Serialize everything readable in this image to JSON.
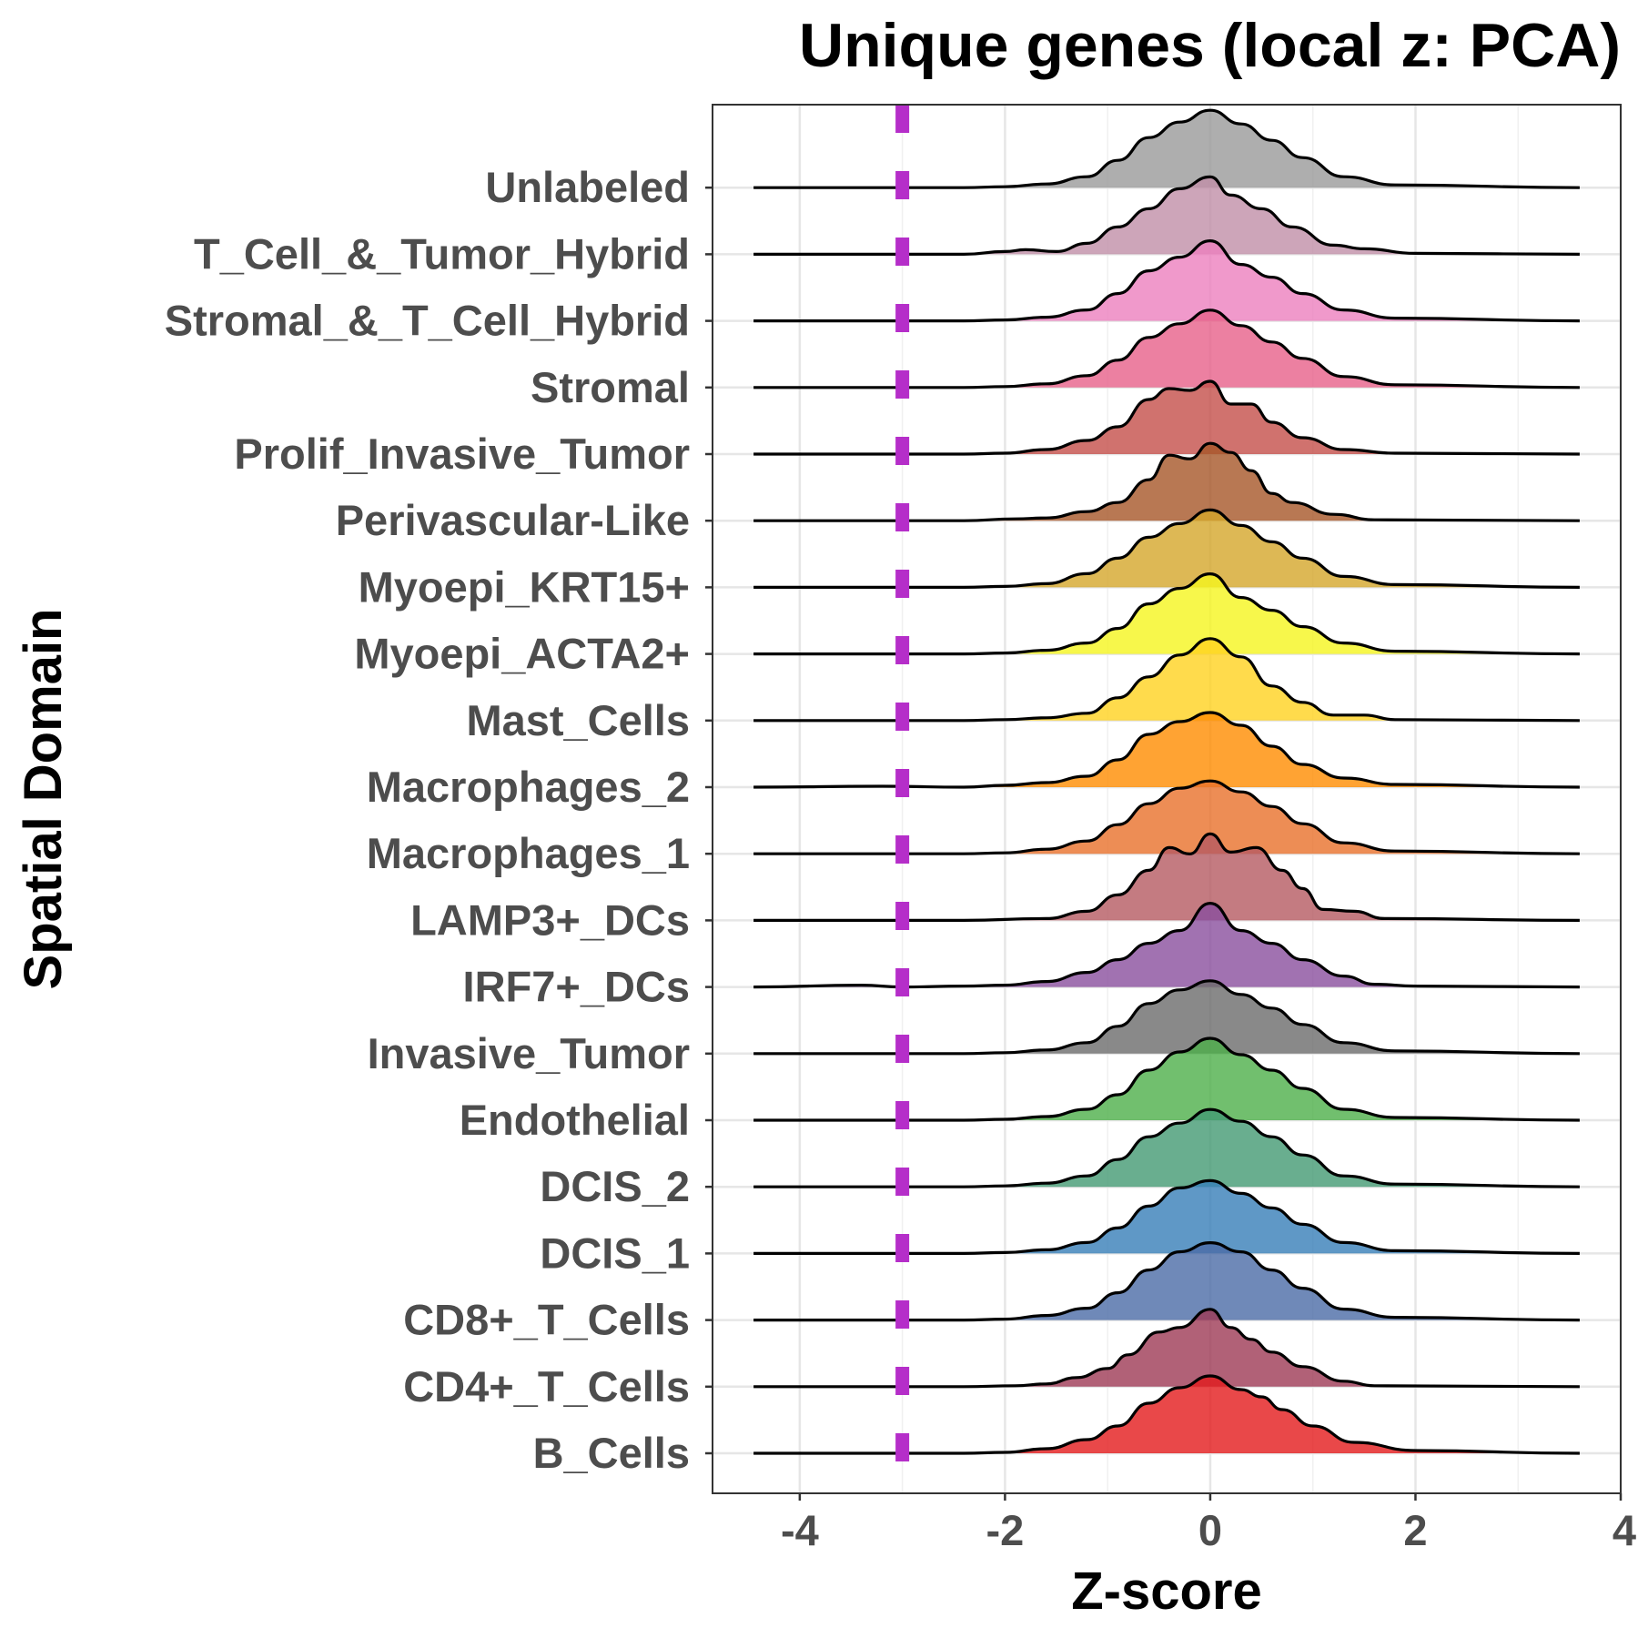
{
  "chart_data": {
    "type": "ridgeline",
    "title": "Unique genes (local z: PCA)",
    "xlabel": "Z-score",
    "ylabel": "Spatial Domain",
    "xlim": [
      -4.85,
      4.0
    ],
    "x_range": [
      -4.45,
      3.6
    ],
    "x_ticks": [
      -4,
      -2,
      0,
      2,
      4
    ],
    "x_tick_labels": [
      "-4",
      "-2",
      "0",
      "2",
      "4"
    ],
    "grid": true,
    "threshold": {
      "x": -3.0,
      "color": "#b52ec9",
      "style": "dashed"
    },
    "categories": [
      "B_Cells",
      "CD4+_T_Cells",
      "CD8+_T_Cells",
      "DCIS_1",
      "DCIS_2",
      "Endothelial",
      "Invasive_Tumor",
      "IRF7+_DCs",
      "LAMP3+_DCs",
      "Macrophages_1",
      "Macrophages_2",
      "Mast_Cells",
      "Myoepi_ACTA2+",
      "Myoepi_KRT15+",
      "Perivascular-Like",
      "Prolif_Invasive_Tumor",
      "Stromal",
      "Stromal_&_T_Cell_Hybrid",
      "T_Cell_&_Tumor_Hybrid",
      "Unlabeled"
    ],
    "series": [
      {
        "colour": "#e41a1c",
        "x": [
          -4.45,
          -2.4,
          -2,
          -1.6,
          -1.2,
          -0.9,
          -0.6,
          -0.3,
          0,
          0.3,
          0.5,
          0.7,
          1.0,
          1.4,
          2.0,
          3.6
        ],
        "density": [
          0,
          0,
          0.01,
          0.05,
          0.15,
          0.3,
          0.55,
          0.72,
          0.85,
          0.7,
          0.62,
          0.48,
          0.3,
          0.12,
          0.03,
          0
        ]
      },
      {
        "colour": "#9e3a55",
        "x": [
          -4.45,
          -2.4,
          -1.9,
          -1.6,
          -1.3,
          -1.0,
          -0.8,
          -0.5,
          -0.3,
          0,
          0.2,
          0.4,
          0.6,
          0.9,
          1.3,
          1.6,
          3.6
        ],
        "density": [
          0,
          0,
          0.01,
          0.03,
          0.1,
          0.2,
          0.35,
          0.6,
          0.65,
          0.85,
          0.65,
          0.52,
          0.38,
          0.22,
          0.06,
          0.01,
          0
        ]
      },
      {
        "colour": "#4b6ca6",
        "x": [
          -4.45,
          -2.4,
          -2,
          -1.6,
          -1.2,
          -0.9,
          -0.6,
          -0.3,
          0,
          0.3,
          0.6,
          0.9,
          1.3,
          1.8,
          3.6
        ],
        "density": [
          0,
          0,
          0.01,
          0.05,
          0.13,
          0.3,
          0.55,
          0.75,
          0.85,
          0.75,
          0.55,
          0.35,
          0.12,
          0.03,
          0
        ]
      },
      {
        "colour": "#377eb8",
        "x": [
          -4.45,
          -2.4,
          -2,
          -1.6,
          -1.2,
          -0.9,
          -0.6,
          -0.3,
          0,
          0.3,
          0.6,
          0.9,
          1.3,
          1.8,
          3.6
        ],
        "density": [
          0,
          0,
          0.01,
          0.04,
          0.12,
          0.28,
          0.52,
          0.72,
          0.8,
          0.66,
          0.5,
          0.32,
          0.12,
          0.03,
          0
        ]
      },
      {
        "colour": "#449a73",
        "x": [
          -4.45,
          -2.4,
          -2,
          -1.6,
          -1.2,
          -0.9,
          -0.6,
          -0.3,
          0,
          0.3,
          0.6,
          0.9,
          1.3,
          1.8,
          3.6
        ],
        "density": [
          0,
          0,
          0.01,
          0.04,
          0.12,
          0.3,
          0.55,
          0.7,
          0.85,
          0.72,
          0.55,
          0.35,
          0.12,
          0.03,
          0
        ]
      },
      {
        "colour": "#4daf4a",
        "x": [
          -4.45,
          -2.4,
          -2,
          -1.6,
          -1.2,
          -0.9,
          -0.6,
          -0.3,
          0,
          0.3,
          0.6,
          0.9,
          1.3,
          1.8,
          3.6
        ],
        "density": [
          0,
          0,
          0.01,
          0.04,
          0.12,
          0.28,
          0.55,
          0.75,
          0.9,
          0.72,
          0.55,
          0.35,
          0.12,
          0.03,
          0
        ]
      },
      {
        "colour": "#6b6b6b",
        "x": [
          -4.45,
          -2.4,
          -2,
          -1.6,
          -1.2,
          -0.9,
          -0.6,
          -0.3,
          0,
          0.3,
          0.6,
          0.9,
          1.3,
          1.8,
          3.6
        ],
        "density": [
          0,
          0,
          0.01,
          0.04,
          0.12,
          0.3,
          0.55,
          0.7,
          0.8,
          0.65,
          0.5,
          0.32,
          0.12,
          0.03,
          0
        ]
      },
      {
        "colour": "#8a4f9e",
        "x": [
          -4.45,
          -3.4,
          -3.0,
          -2.4,
          -2,
          -1.6,
          -1.2,
          -0.9,
          -0.6,
          -0.3,
          0,
          0.3,
          0.6,
          0.9,
          1.3,
          1.6,
          2.0,
          3.6
        ],
        "density": [
          0,
          0.02,
          0,
          0.01,
          0.02,
          0.06,
          0.16,
          0.3,
          0.48,
          0.62,
          0.92,
          0.62,
          0.48,
          0.3,
          0.12,
          0.03,
          0.01,
          0
        ]
      },
      {
        "colour": "#b55a62",
        "x": [
          -4.45,
          -2.4,
          -1.6,
          -1.2,
          -0.9,
          -0.6,
          -0.4,
          -0.2,
          0,
          0.2,
          0.45,
          0.7,
          0.9,
          1.1,
          1.4,
          1.7,
          3.6
        ],
        "density": [
          0,
          0,
          0.02,
          0.1,
          0.28,
          0.55,
          0.8,
          0.73,
          0.95,
          0.75,
          0.8,
          0.55,
          0.35,
          0.12,
          0.1,
          0.02,
          0
        ]
      },
      {
        "colour": "#e8702a",
        "x": [
          -4.45,
          -2.4,
          -2,
          -1.6,
          -1.2,
          -0.9,
          -0.6,
          -0.3,
          0,
          0.3,
          0.6,
          0.9,
          1.3,
          1.8,
          3.6
        ],
        "density": [
          0,
          0,
          0.01,
          0.05,
          0.14,
          0.32,
          0.55,
          0.72,
          0.8,
          0.68,
          0.52,
          0.33,
          0.12,
          0.03,
          0
        ]
      },
      {
        "colour": "#ff8c00",
        "x": [
          -4.45,
          -3.2,
          -2.4,
          -2,
          -1.6,
          -1.2,
          -0.9,
          -0.6,
          -0.3,
          0,
          0.3,
          0.6,
          0.9,
          1.3,
          1.8,
          3.6
        ],
        "density": [
          0,
          0.01,
          0,
          0.02,
          0.05,
          0.12,
          0.3,
          0.58,
          0.72,
          0.82,
          0.68,
          0.45,
          0.25,
          0.1,
          0.03,
          0
        ]
      },
      {
        "colour": "#ffd21f",
        "x": [
          -4.45,
          -2.4,
          -2,
          -1.6,
          -1.2,
          -0.9,
          -0.6,
          -0.3,
          0,
          0.3,
          0.6,
          0.9,
          1.2,
          1.5,
          1.8,
          3.6
        ],
        "density": [
          0,
          0,
          0.01,
          0.03,
          0.08,
          0.25,
          0.48,
          0.72,
          0.9,
          0.7,
          0.38,
          0.2,
          0.06,
          0.06,
          0.01,
          0
        ]
      },
      {
        "colour": "#f5f51e",
        "x": [
          -4.45,
          -2.4,
          -2,
          -1.6,
          -1.2,
          -0.9,
          -0.6,
          -0.3,
          0,
          0.3,
          0.6,
          0.9,
          1.3,
          1.8,
          3.6
        ],
        "density": [
          0,
          0,
          0.01,
          0.04,
          0.12,
          0.28,
          0.55,
          0.72,
          0.88,
          0.62,
          0.48,
          0.3,
          0.12,
          0.03,
          0
        ]
      },
      {
        "colour": "#d4a62a",
        "x": [
          -4.45,
          -2.4,
          -2,
          -1.6,
          -1.2,
          -0.9,
          -0.6,
          -0.3,
          0,
          0.3,
          0.6,
          0.9,
          1.3,
          1.8,
          3.6
        ],
        "density": [
          0,
          0,
          0.01,
          0.04,
          0.15,
          0.32,
          0.55,
          0.7,
          0.85,
          0.68,
          0.5,
          0.32,
          0.12,
          0.03,
          0
        ]
      },
      {
        "colour": "#a65628",
        "x": [
          -4.45,
          -2.4,
          -1.9,
          -1.6,
          -1.2,
          -0.9,
          -0.6,
          -0.4,
          -0.2,
          0,
          0.2,
          0.4,
          0.6,
          0.8,
          1.2,
          1.6,
          3.6
        ],
        "density": [
          0,
          0,
          0.02,
          0.03,
          0.1,
          0.2,
          0.45,
          0.72,
          0.68,
          0.85,
          0.75,
          0.55,
          0.3,
          0.2,
          0.07,
          0.01,
          0
        ]
      },
      {
        "colour": "#c44f4a",
        "x": [
          -4.45,
          -2.4,
          -2,
          -1.6,
          -1.2,
          -0.9,
          -0.6,
          -0.4,
          -0.2,
          0,
          0.2,
          0.4,
          0.6,
          0.9,
          1.3,
          1.8,
          3.6
        ],
        "density": [
          0,
          0,
          0.01,
          0.05,
          0.15,
          0.3,
          0.6,
          0.72,
          0.7,
          0.8,
          0.55,
          0.55,
          0.35,
          0.18,
          0.05,
          0.01,
          0
        ]
      },
      {
        "colour": "#e7608a",
        "x": [
          -4.45,
          -2.4,
          -2,
          -1.6,
          -1.2,
          -0.9,
          -0.6,
          -0.3,
          0,
          0.3,
          0.6,
          0.9,
          1.3,
          1.8,
          3.6
        ],
        "density": [
          0,
          0,
          0.01,
          0.04,
          0.13,
          0.3,
          0.55,
          0.7,
          0.85,
          0.68,
          0.5,
          0.32,
          0.12,
          0.03,
          0
        ]
      },
      {
        "colour": "#ec7fbe",
        "x": [
          -4.45,
          -2.4,
          -2,
          -1.6,
          -1.2,
          -0.9,
          -0.6,
          -0.3,
          0,
          0.3,
          0.6,
          0.9,
          1.3,
          1.8,
          3.6
        ],
        "density": [
          0,
          0,
          0.01,
          0.04,
          0.12,
          0.3,
          0.55,
          0.7,
          0.88,
          0.62,
          0.48,
          0.3,
          0.12,
          0.03,
          0
        ]
      },
      {
        "colour": "#c08ea8",
        "x": [
          -4.45,
          -2.4,
          -2.0,
          -1.8,
          -1.5,
          -1.2,
          -0.9,
          -0.6,
          -0.3,
          0,
          0.2,
          0.5,
          0.8,
          1.2,
          1.5,
          2.0,
          3.6
        ],
        "density": [
          0,
          0,
          0.03,
          0.05,
          0.03,
          0.12,
          0.3,
          0.5,
          0.72,
          0.85,
          0.65,
          0.5,
          0.3,
          0.1,
          0.06,
          0.01,
          0
        ]
      },
      {
        "colour": "#9a9a9a",
        "x": [
          -4.45,
          -2.4,
          -2,
          -1.6,
          -1.2,
          -0.9,
          -0.6,
          -0.3,
          0,
          0.3,
          0.6,
          0.9,
          1.3,
          1.8,
          3.6
        ],
        "density": [
          0,
          0,
          0.01,
          0.04,
          0.12,
          0.3,
          0.55,
          0.72,
          0.85,
          0.7,
          0.52,
          0.33,
          0.12,
          0.03,
          0
        ]
      }
    ]
  }
}
